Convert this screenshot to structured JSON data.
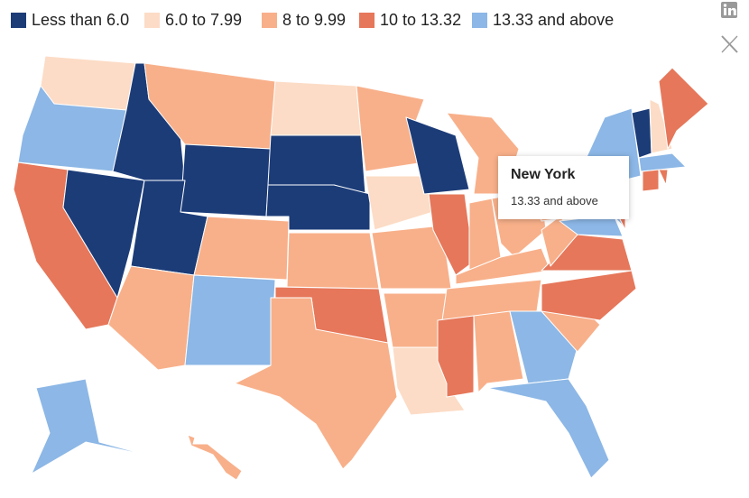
{
  "legend": [
    {
      "label": "Less than 6.0",
      "color": "#1c3c78"
    },
    {
      "label": "6.0 to 7.99",
      "color": "#fcdcc6"
    },
    {
      "label": "8 to 9.99",
      "color": "#f8b08a"
    },
    {
      "label": "10 to 13.32",
      "color": "#e6775a"
    },
    {
      "label": "13.33 and above",
      "color": "#8cb7e6"
    }
  ],
  "state_classes": [
    1,
    4,
    3,
    0,
    0,
    2,
    0,
    0,
    2,
    2,
    4,
    1,
    0,
    0,
    2,
    3,
    2,
    2,
    1,
    2,
    2,
    1,
    0,
    3,
    2,
    2,
    2,
    2,
    2,
    3,
    2,
    4,
    4,
    2,
    3,
    3,
    2,
    2,
    4,
    4,
    4,
    3,
    0,
    1,
    3,
    4,
    3,
    3,
    4,
    2
  ],
  "tooltip": {
    "title": "New York",
    "label": "13.33 and above"
  }
}
